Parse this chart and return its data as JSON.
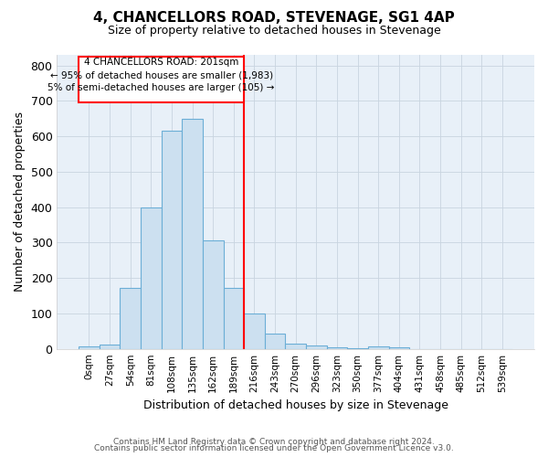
{
  "title": "4, CHANCELLORS ROAD, STEVENAGE, SG1 4AP",
  "subtitle": "Size of property relative to detached houses in Stevenage",
  "xlabel": "Distribution of detached houses by size in Stevenage",
  "ylabel": "Number of detached properties",
  "bar_color": "#cce0f0",
  "bar_edge_color": "#6baed6",
  "categories": [
    "0sqm",
    "27sqm",
    "54sqm",
    "81sqm",
    "108sqm",
    "135sqm",
    "162sqm",
    "189sqm",
    "216sqm",
    "243sqm",
    "270sqm",
    "296sqm",
    "323sqm",
    "350sqm",
    "377sqm",
    "404sqm",
    "431sqm",
    "458sqm",
    "485sqm",
    "512sqm",
    "539sqm"
  ],
  "values": [
    8,
    13,
    172,
    400,
    615,
    650,
    305,
    172,
    100,
    42,
    15,
    10,
    5,
    3,
    7,
    5,
    0,
    0,
    0,
    0,
    0
  ],
  "red_line_index": 8,
  "annotation_line1": "4 CHANCELLORS ROAD: 201sqm",
  "annotation_line2": "← 95% of detached houses are smaller (1,983)",
  "annotation_line3": "5% of semi-detached houses are larger (105) →",
  "ylim": [
    0,
    830
  ],
  "yticks": [
    0,
    100,
    200,
    300,
    400,
    500,
    600,
    700,
    800
  ],
  "footer_text1": "Contains HM Land Registry data © Crown copyright and database right 2024.",
  "footer_text2": "Contains public sector information licensed under the Open Government Licence v3.0.",
  "background_color": "#ffffff",
  "plot_bg_color": "#e8f0f8",
  "grid_color": "#c8d4e0",
  "title_fontsize": 11,
  "subtitle_fontsize": 9
}
